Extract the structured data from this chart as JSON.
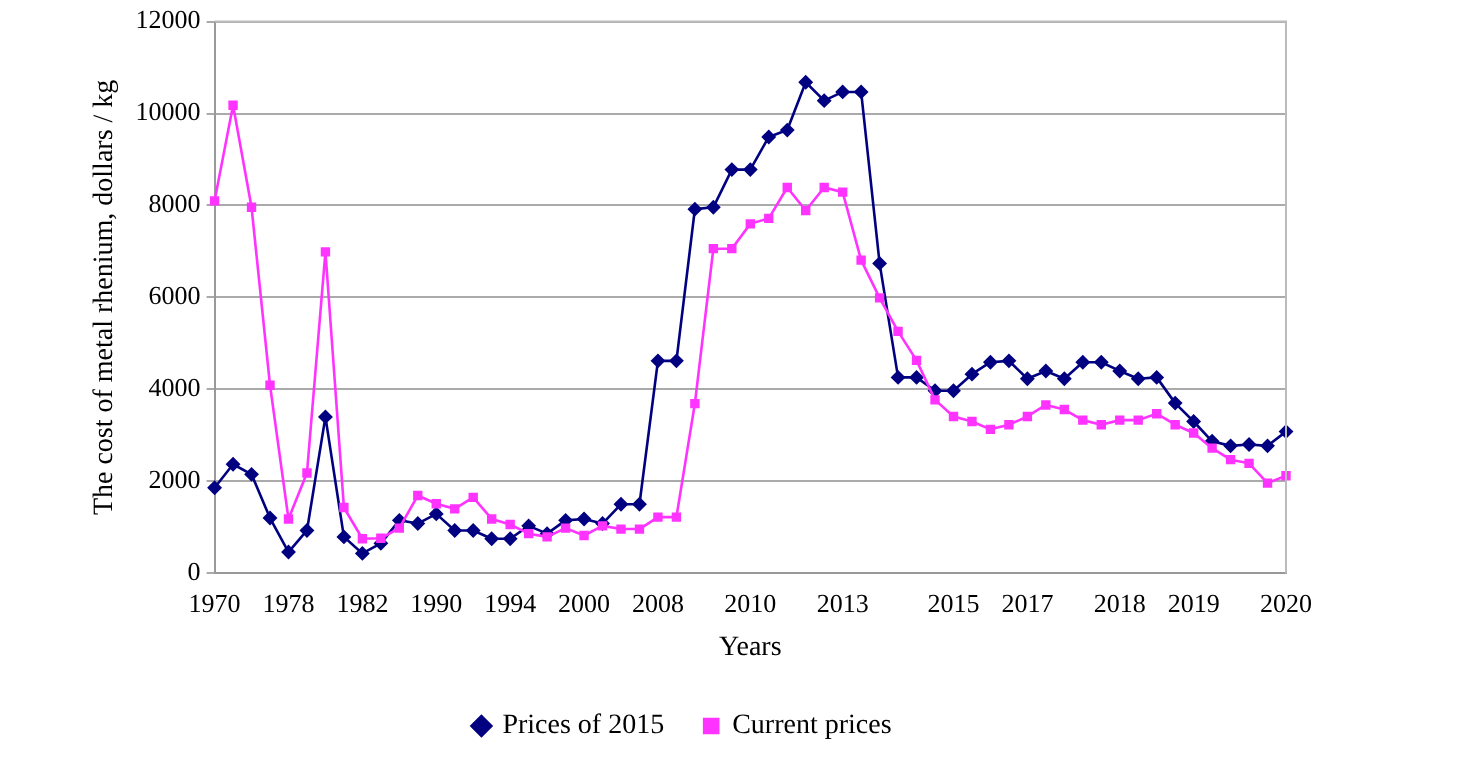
{
  "chart_data": {
    "type": "line",
    "xlabel": "Years",
    "ylabel": "The cost of metal rhenium, dollars / kg",
    "categories": [
      "1970",
      null,
      null,
      null,
      "1978",
      null,
      null,
      null,
      "1982",
      null,
      null,
      null,
      "1990",
      null,
      null,
      null,
      "1994",
      null,
      null,
      null,
      "2000",
      null,
      null,
      null,
      "2008",
      null,
      null,
      null,
      null,
      "2010",
      null,
      null,
      null,
      null,
      "2013",
      null,
      null,
      null,
      null,
      null,
      "2015",
      null,
      null,
      null,
      "2017",
      null,
      null,
      null,
      null,
      "2018",
      null,
      null,
      null,
      "2019",
      null,
      null,
      null,
      null,
      "2020"
    ],
    "series": [
      {
        "name": "Prices of 2015",
        "color": "#000080",
        "marker": "diamond",
        "values": [
          1860,
          2370,
          2150,
          1200,
          460,
          930,
          3400,
          790,
          430,
          650,
          1150,
          1080,
          1290,
          930,
          930,
          750,
          750,
          1030,
          860,
          1150,
          1180,
          1080,
          1500,
          1500,
          4620,
          4620,
          7920,
          7960,
          8780,
          8780,
          9490,
          9640,
          10680,
          10280,
          10470,
          10470,
          6740,
          4260,
          4260,
          3970,
          3970,
          4330,
          4590,
          4620,
          4230,
          4400,
          4230,
          4590,
          4590,
          4400,
          4230,
          4260,
          3700,
          3300,
          2870,
          2770,
          2800,
          2770,
          3080
        ]
      },
      {
        "name": "Current prices",
        "color": "#ff33ff",
        "marker": "square",
        "values": [
          8100,
          10180,
          7960,
          4090,
          1180,
          2180,
          6990,
          1430,
          750,
          760,
          980,
          1690,
          1510,
          1400,
          1650,
          1180,
          1060,
          860,
          790,
          980,
          820,
          1030,
          960,
          960,
          1220,
          1220,
          3690,
          7060,
          7060,
          7600,
          7720,
          8390,
          7890,
          8390,
          8290,
          6810,
          5990,
          5260,
          4630,
          3770,
          3410,
          3300,
          3130,
          3230,
          3410,
          3660,
          3560,
          3330,
          3230,
          3330,
          3330,
          3470,
          3230,
          3050,
          2720,
          2470,
          2390,
          1960,
          2120
        ]
      }
    ],
    "ylim": [
      0,
      12000
    ],
    "yticks": [
      0,
      2000,
      4000,
      6000,
      8000,
      10000,
      12000
    ],
    "grid": "y",
    "legend": "bottom"
  }
}
